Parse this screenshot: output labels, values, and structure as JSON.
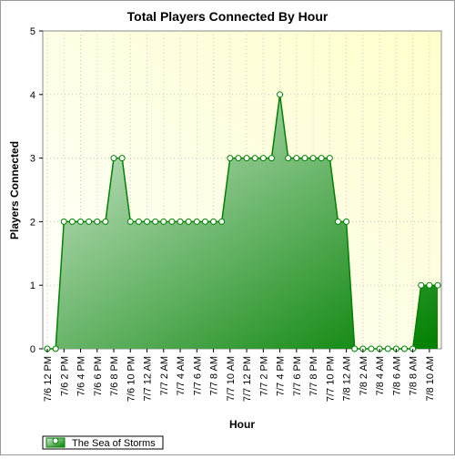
{
  "chart_data": {
    "type": "area",
    "title": "Total Players Connected By Hour",
    "xlabel": "Hour",
    "ylabel": "Players Connected",
    "ylim": [
      0,
      5
    ],
    "yticks": [
      0,
      1,
      2,
      3,
      4,
      5
    ],
    "grid": true,
    "legend_position": "bottom-left",
    "x_tick_labels": [
      "7/6 12 PM",
      "7/6 2 PM",
      "7/6 4 PM",
      "7/6 6 PM",
      "7/6 8 PM",
      "7/6 10 PM",
      "7/7 12 AM",
      "7/7 2 AM",
      "7/7 4 AM",
      "7/7 6 AM",
      "7/7 8 AM",
      "7/7 10 AM",
      "7/7 12 PM",
      "7/7 2 PM",
      "7/7 4 PM",
      "7/7 6 PM",
      "7/7 8 PM",
      "7/7 10 PM",
      "7/8 12 AM",
      "7/8 2 AM",
      "7/8 4 AM",
      "7/8 6 AM",
      "7/8 8 AM",
      "7/8 10 AM"
    ],
    "series": [
      {
        "name": "The Sea of Storms",
        "color": "#008000",
        "values": [
          0,
          0,
          2,
          2,
          2,
          2,
          2,
          2,
          3,
          3,
          2,
          2,
          2,
          2,
          2,
          2,
          2,
          2,
          2,
          2,
          2,
          2,
          3,
          3,
          3,
          3,
          3,
          3,
          4,
          3,
          3,
          3,
          3,
          3,
          3,
          2,
          2,
          0,
          0,
          0,
          0,
          0,
          0,
          0,
          0,
          1,
          1,
          1
        ]
      }
    ]
  }
}
